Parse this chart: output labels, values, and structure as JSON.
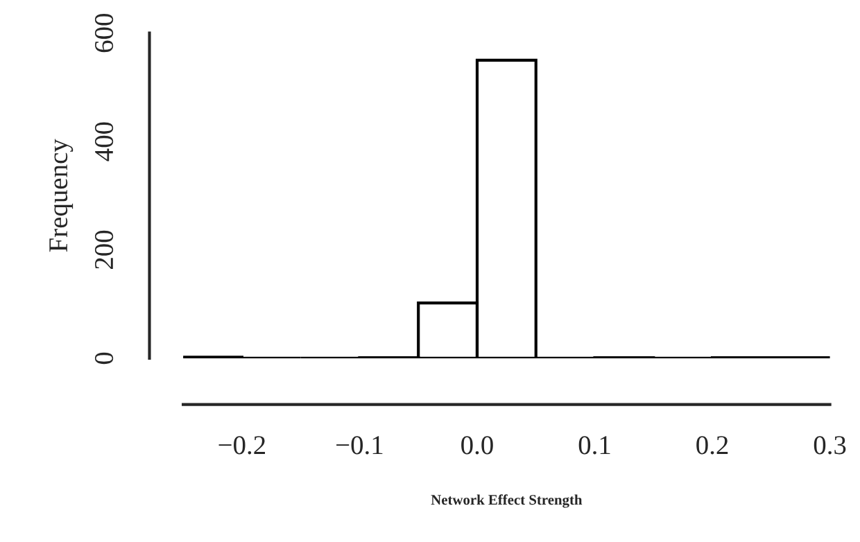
{
  "chart_data": {
    "type": "histogram",
    "xlabel": "Network Effect Strength",
    "ylabel": "Frequency",
    "bins": [
      -0.25,
      -0.2,
      -0.15,
      -0.1,
      -0.05,
      0.0,
      0.05,
      0.1,
      0.15,
      0.2,
      0.25,
      0.3
    ],
    "values": [
      2,
      0,
      0,
      1,
      102,
      550,
      0,
      1,
      0,
      1,
      1
    ],
    "xlim": [
      -0.25,
      0.3
    ],
    "ylim": [
      0,
      600
    ],
    "xticks": [
      {
        "value": -0.2,
        "label": "−0.2"
      },
      {
        "value": -0.1,
        "label": "−0.1"
      },
      {
        "value": 0.0,
        "label": "0.0"
      },
      {
        "value": 0.1,
        "label": "0.1"
      },
      {
        "value": 0.2,
        "label": "0.2"
      },
      {
        "value": 0.3,
        "label": "0.3"
      }
    ],
    "yticks": [
      0,
      200,
      400,
      600
    ],
    "grid": false
  }
}
